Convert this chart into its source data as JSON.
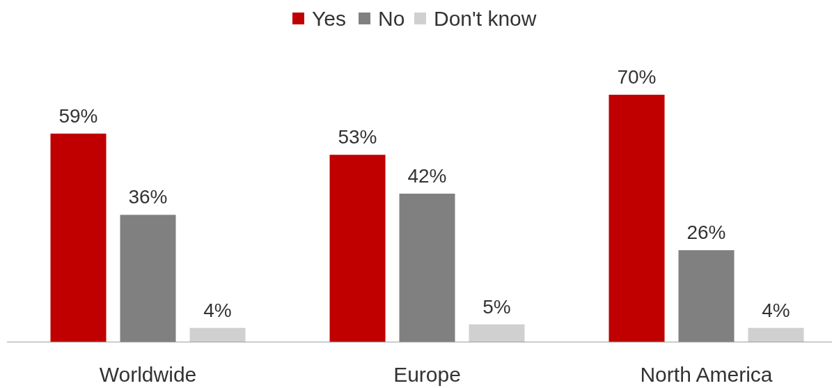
{
  "chart_data": {
    "type": "bar",
    "categories": [
      "Worldwide",
      "Europe",
      "North America"
    ],
    "series": [
      {
        "name": "Yes",
        "color": "#c00000",
        "values": [
          59,
          53,
          70
        ],
        "value_labels": [
          "59%",
          "53%",
          "70%"
        ]
      },
      {
        "name": "No",
        "color": "#808080",
        "values": [
          36,
          42,
          26
        ],
        "value_labels": [
          "36%",
          "42%",
          "26%"
        ]
      },
      {
        "name": "Don't know",
        "color": "#d0d0d0",
        "values": [
          4,
          5,
          4
        ],
        "value_labels": [
          "4%",
          "5%",
          "4%"
        ]
      }
    ],
    "legend": "top"
  }
}
